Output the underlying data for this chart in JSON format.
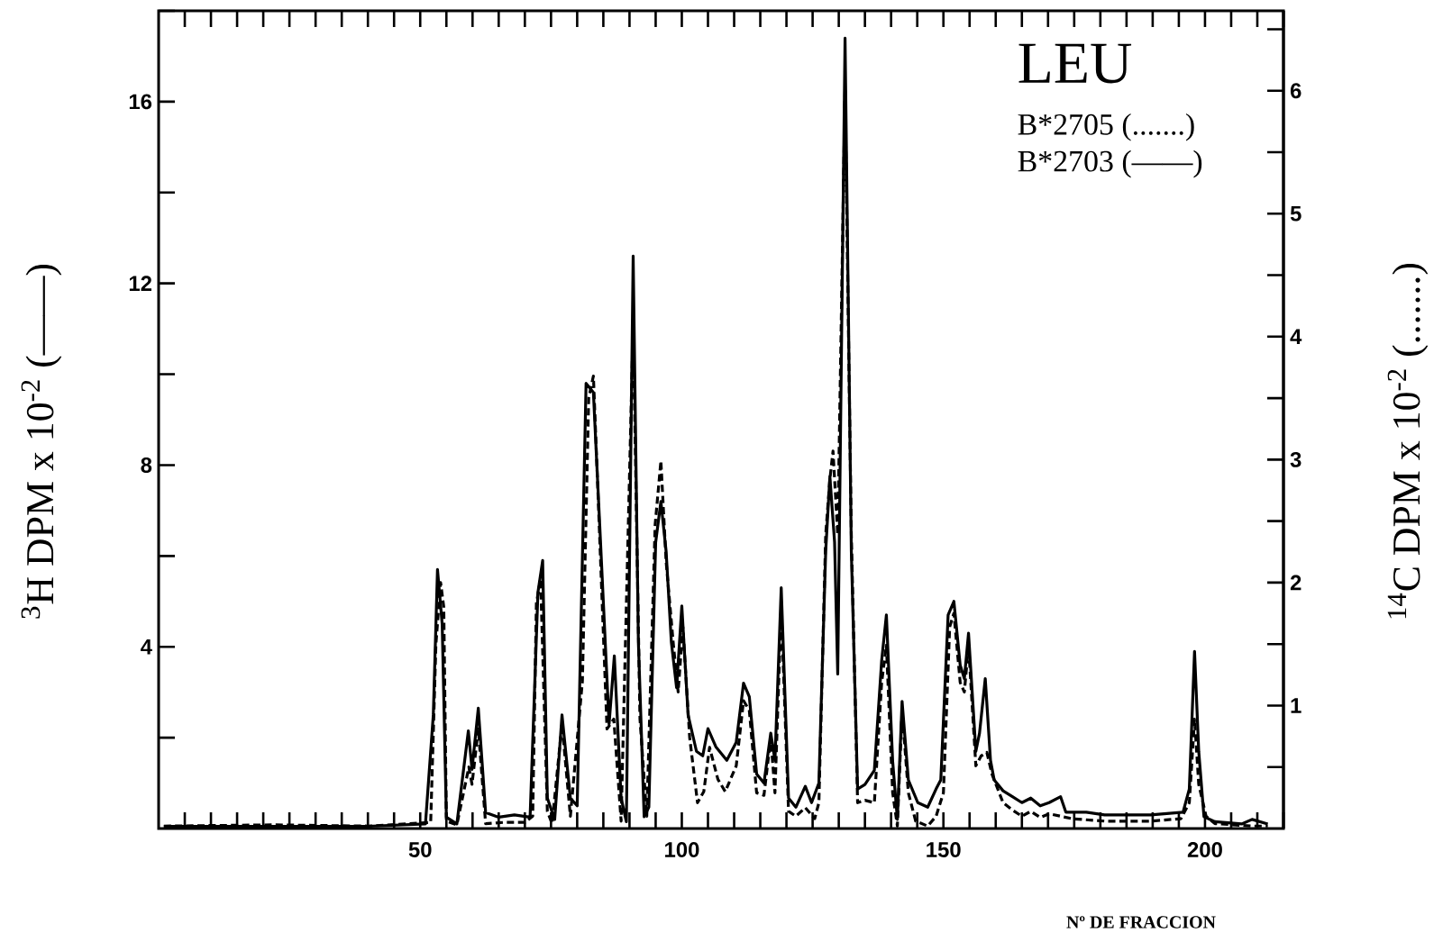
{
  "chart_data": {
    "type": "line",
    "xlabel": "Nº DE FRACCION",
    "ylabel": "$^{3}$H DPM x 10$^{-2}$ (——)",
    "y2label": "$^{14}$C DPM x 10$^{-2}$ (.......)",
    "annotations": [
      "LEU",
      "B*2705 (.......)",
      "B*2703 (——)"
    ],
    "xlim": [
      0,
      215
    ],
    "xticks": [
      50,
      100,
      150,
      200
    ],
    "ylim": [
      0,
      18
    ],
    "yticks": [
      4,
      8,
      12,
      16
    ],
    "y2lim": [
      0,
      6.65
    ],
    "y2ticks": [
      1,
      2,
      3,
      4,
      5,
      6
    ],
    "series": [
      {
        "type": "line",
        "color": "#000000",
        "line_style": "solid",
        "x": [
          1,
          20,
          40,
          51,
          52.5,
          53.3,
          54.2,
          55,
          57,
          59.2,
          59.9,
          61.1,
          62.5,
          65,
          68,
          71,
          72.5,
          73.4,
          74.3,
          75.7,
          77.1,
          78.7,
          80,
          81.7,
          83.1,
          84.3,
          86.1,
          87.1,
          88.4,
          89.4,
          90.7,
          91.7,
          92.8,
          93.7,
          95,
          96,
          97,
          98,
          99,
          100,
          101.2,
          102.8,
          104,
          105,
          106.5,
          108.6,
          110.4,
          111.8,
          112.9,
          114.3,
          115.7,
          117,
          117.8,
          119,
          120.4,
          121.8,
          123.6,
          124.8,
          126.2,
          127.5,
          128.3,
          129.2,
          129.8,
          131.2,
          132.4,
          133.6,
          135,
          136.8,
          138.2,
          139.1,
          140.3,
          141.2,
          142.1,
          143.3,
          145.1,
          147,
          148.6,
          149.5,
          150.9,
          152,
          153.2,
          154,
          154.8,
          156.2,
          156.9,
          158,
          159,
          159.7,
          161.4,
          163.2,
          165,
          166.7,
          168.5,
          170.2,
          172.4,
          173.4,
          177.3,
          180.8,
          189.6,
          195.8,
          197,
          198,
          198.8,
          199.8,
          201.9,
          207,
          209,
          212
        ],
        "values": [
          0.05,
          0.05,
          0.05,
          0.1,
          2.5,
          5.7,
          4.5,
          0.25,
          0.1,
          2.15,
          1.3,
          2.65,
          0.35,
          0.25,
          0.3,
          0.25,
          5.2,
          5.9,
          0.67,
          0.2,
          2.5,
          0.67,
          0.5,
          9.8,
          9.6,
          6.7,
          2.3,
          3.8,
          0.67,
          0.15,
          12.6,
          4.1,
          0.26,
          0.47,
          6.3,
          7.2,
          6.1,
          4.1,
          3.1,
          4.9,
          2.5,
          1.7,
          1.6,
          2.2,
          1.8,
          1.5,
          1.9,
          3.2,
          2.9,
          1.2,
          1.0,
          2.1,
          1.5,
          5.3,
          0.67,
          0.47,
          0.93,
          0.57,
          1.0,
          6.1,
          7.75,
          6.3,
          3.4,
          17.4,
          6.1,
          0.87,
          0.97,
          1.28,
          3.7,
          4.7,
          1.48,
          0.2,
          2.8,
          1.07,
          0.57,
          0.47,
          0.87,
          1.07,
          4.7,
          5.0,
          3.6,
          3.3,
          4.3,
          1.7,
          2.1,
          3.3,
          1.5,
          1.07,
          0.83,
          0.7,
          0.57,
          0.67,
          0.5,
          0.57,
          0.7,
          0.36,
          0.36,
          0.3,
          0.3,
          0.36,
          0.87,
          3.9,
          1.7,
          0.26,
          0.15,
          0.1,
          0.2,
          0.1
        ]
      },
      {
        "type": "line",
        "color": "#000000",
        "line_style": "dashed",
        "axis": "y2",
        "x": [
          1,
          22,
          40,
          52,
          53,
          53.9,
          54.5,
          55,
          57,
          59.3,
          59.9,
          61.1,
          62.5,
          66,
          70,
          71.5,
          72.2,
          73,
          74.3,
          75.2,
          77.1,
          78.7,
          81,
          82.2,
          83.1,
          84,
          85.7,
          87,
          88.4,
          90.7,
          92,
          93.3,
          94.9,
          96,
          97,
          98.4,
          99.3,
          100.2,
          101.5,
          103,
          104.2,
          105.3,
          106.9,
          108.3,
          110.4,
          111.8,
          112.9,
          114.3,
          115.7,
          117,
          117.8,
          119,
          120.4,
          121.8,
          123.6,
          125.4,
          126.2,
          127.5,
          128.3,
          128.9,
          129.8,
          131.2,
          132.4,
          133.6,
          135,
          136.8,
          138.2,
          139.1,
          140.3,
          141.2,
          142.1,
          143.3,
          144.7,
          147,
          148.6,
          150,
          151.2,
          152,
          153.2,
          154,
          154.8,
          156.2,
          157.2,
          158.3,
          159.3,
          161.4,
          163.2,
          165,
          166.7,
          168.5,
          170.2,
          172.4,
          174.6,
          180.8,
          189.6,
          195.4,
          197,
          198,
          198.8,
          200.2,
          201.9,
          209,
          212
        ],
        "values": [
          0.02,
          0.03,
          0.02,
          0.05,
          1.5,
          2.0,
          1.8,
          0.06,
          0.03,
          0.5,
          0.36,
          0.81,
          0.04,
          0.05,
          0.05,
          0.1,
          1.83,
          2.03,
          0.14,
          0.04,
          0.85,
          0.1,
          1.2,
          3.5,
          3.68,
          2.7,
          0.81,
          0.89,
          0.06,
          4.1,
          0.89,
          0.1,
          2.47,
          2.99,
          2.17,
          1.49,
          1.11,
          1.64,
          0.74,
          0.21,
          0.3,
          0.66,
          0.4,
          0.3,
          0.51,
          1.04,
          0.96,
          0.29,
          0.27,
          0.74,
          0.29,
          1.79,
          0.14,
          0.1,
          0.17,
          0.08,
          0.21,
          2.39,
          2.84,
          3.07,
          2.39,
          6.0,
          2.39,
          0.21,
          0.23,
          0.21,
          1.19,
          1.49,
          0.29,
          0.02,
          0.96,
          0.29,
          0.06,
          0.02,
          0.1,
          0.29,
          1.64,
          1.75,
          1.19,
          1.11,
          1.49,
          0.51,
          0.59,
          0.62,
          0.44,
          0.21,
          0.15,
          0.1,
          0.14,
          0.09,
          0.12,
          0.1,
          0.08,
          0.06,
          0.06,
          0.08,
          0.21,
          0.89,
          0.36,
          0.1,
          0.04,
          0.02,
          0.02
        ]
      }
    ]
  }
}
